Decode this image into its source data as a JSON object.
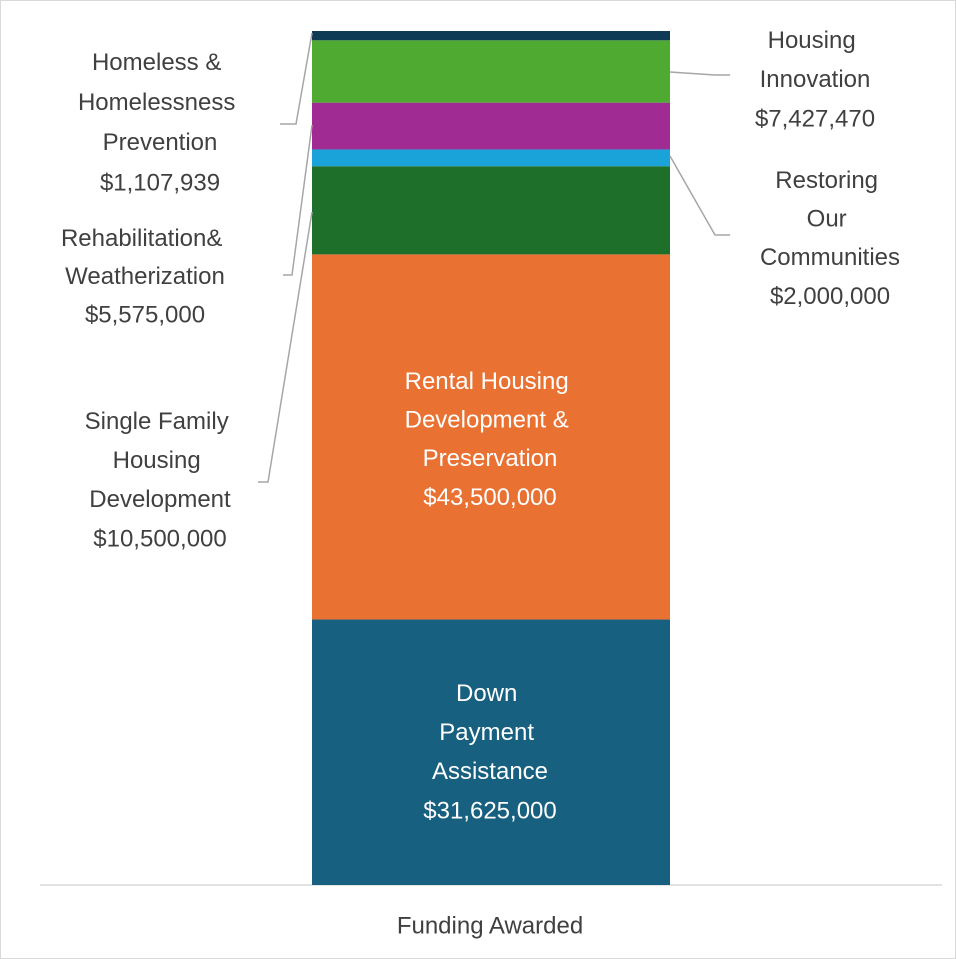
{
  "chart_data": {
    "type": "stacked_bar",
    "categories": [
      "Funding Awarded"
    ],
    "series": [
      {
        "name": "Down Payment Assistance",
        "color": "#17607f",
        "values": [
          31625000
        ],
        "value_labels": [
          "$31,625,000"
        ]
      },
      {
        "name": "Rental Housing Development & Preservation",
        "color": "#e97132",
        "values": [
          43500000
        ],
        "value_labels": [
          "$43,500,000"
        ]
      },
      {
        "name": "Single Family Housing Development",
        "color": "#1d6f2a",
        "values": [
          10500000
        ],
        "value_labels": [
          "$10,500,000"
        ]
      },
      {
        "name": "Restoring Our Communities",
        "color": "#1aa3d8",
        "values": [
          2000000
        ],
        "value_labels": [
          "$2,000,000"
        ]
      },
      {
        "name": "Rehabilitation& Weatherization",
        "color": "#a02b93",
        "values": [
          5575000
        ],
        "value_labels": [
          "$5,575,000"
        ]
      },
      {
        "name": "Housing Innovation",
        "color": "#4eaa30",
        "values": [
          7427470
        ],
        "value_labels": [
          "$7,427,470"
        ]
      },
      {
        "name": "Homeless & Homelessness Prevention",
        "color": "#0e3a55",
        "values": [
          1107939
        ],
        "value_labels": [
          "$1,107,939"
        ]
      }
    ]
  }
}
